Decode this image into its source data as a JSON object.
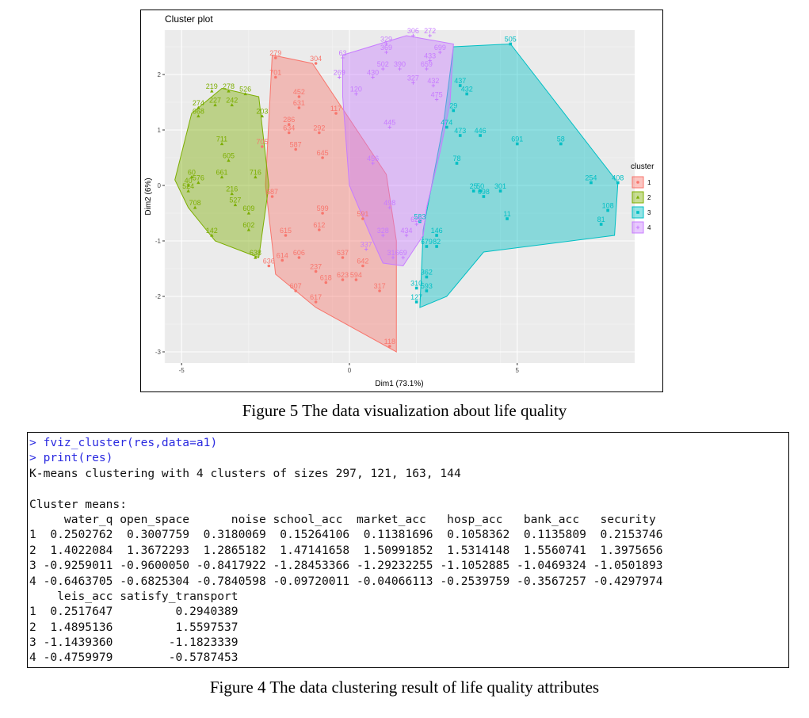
{
  "chart_data": {
    "type": "scatter",
    "title": "Cluster plot",
    "xlabel": "Dim1 (73.1%)",
    "ylabel": "Dim2 (6%)",
    "xlim": [
      -5.5,
      8.5
    ],
    "ylim": [
      -3.2,
      2.8
    ],
    "x_ticks": [
      -5,
      0,
      5
    ],
    "y_ticks": [
      -3,
      -2,
      -1,
      0,
      1,
      2
    ],
    "grid": true,
    "legend_title": "cluster",
    "legend_position": "right",
    "series": [
      {
        "name": "1",
        "color": "#F8766D",
        "marker": "circle",
        "hull": [
          [
            -2.3,
            2.35
          ],
          [
            -1.1,
            2.2
          ],
          [
            1.1,
            0.2
          ],
          [
            1.4,
            -1.0
          ],
          [
            1.4,
            -3.0
          ],
          [
            -1.0,
            -2.2
          ],
          [
            -2.2,
            -1.6
          ],
          [
            -2.5,
            0.0
          ]
        ],
        "points": [
          {
            "label": "279",
            "x": -2.2,
            "y": 2.3
          },
          {
            "label": "304",
            "x": -1.0,
            "y": 2.2
          },
          {
            "label": "701",
            "x": -2.2,
            "y": 1.95
          },
          {
            "label": "452",
            "x": -1.5,
            "y": 1.6
          },
          {
            "label": "631",
            "x": -1.5,
            "y": 1.4
          },
          {
            "label": "286",
            "x": -1.8,
            "y": 1.1
          },
          {
            "label": "634",
            "x": -1.8,
            "y": 0.95
          },
          {
            "label": "292",
            "x": -0.9,
            "y": 0.95
          },
          {
            "label": "117",
            "x": -0.4,
            "y": 1.3
          },
          {
            "label": "705",
            "x": -2.6,
            "y": 0.7
          },
          {
            "label": "587",
            "x": -1.6,
            "y": 0.65
          },
          {
            "label": "645",
            "x": -0.8,
            "y": 0.5
          },
          {
            "label": "687",
            "x": -2.3,
            "y": -0.2
          },
          {
            "label": "615",
            "x": -1.9,
            "y": -0.9
          },
          {
            "label": "614",
            "x": -2.0,
            "y": -1.35
          },
          {
            "label": "606",
            "x": -1.5,
            "y": -1.3
          },
          {
            "label": "636",
            "x": -2.4,
            "y": -1.45
          },
          {
            "label": "237",
            "x": -1.0,
            "y": -1.55
          },
          {
            "label": "618",
            "x": -0.7,
            "y": -1.75
          },
          {
            "label": "607",
            "x": -1.6,
            "y": -1.9
          },
          {
            "label": "637",
            "x": -0.2,
            "y": -1.3
          },
          {
            "label": "642",
            "x": 0.4,
            "y": -1.45
          },
          {
            "label": "617",
            "x": -1.0,
            "y": -2.1
          },
          {
            "label": "317",
            "x": 0.9,
            "y": -1.9
          },
          {
            "label": "118",
            "x": 1.2,
            "y": -2.9
          },
          {
            "label": "623",
            "x": -0.2,
            "y": -1.7
          },
          {
            "label": "594",
            "x": 0.2,
            "y": -1.7
          },
          {
            "label": "599",
            "x": -0.8,
            "y": -0.5
          },
          {
            "label": "612",
            "x": -0.9,
            "y": -0.8
          },
          {
            "label": "591",
            "x": 0.4,
            "y": -0.6
          }
        ]
      },
      {
        "name": "2",
        "color": "#7CAE00",
        "marker": "triangle",
        "hull": [
          [
            -3.8,
            1.75
          ],
          [
            -2.7,
            1.6
          ],
          [
            -2.4,
            0.0
          ],
          [
            -2.7,
            -1.3
          ],
          [
            -4.0,
            -1.0
          ],
          [
            -4.8,
            -0.4
          ],
          [
            -5.2,
            0.1
          ],
          [
            -4.7,
            1.3
          ]
        ],
        "points": [
          {
            "label": "219",
            "x": -4.1,
            "y": 1.7
          },
          {
            "label": "278",
            "x": -3.6,
            "y": 1.7
          },
          {
            "label": "526",
            "x": -3.1,
            "y": 1.65
          },
          {
            "label": "274",
            "x": -4.5,
            "y": 1.4
          },
          {
            "label": "227",
            "x": -4.0,
            "y": 1.45
          },
          {
            "label": "242",
            "x": -3.5,
            "y": 1.45
          },
          {
            "label": "668",
            "x": -4.5,
            "y": 1.25
          },
          {
            "label": "203",
            "x": -2.6,
            "y": 1.25
          },
          {
            "label": "711",
            "x": -3.8,
            "y": 0.75
          },
          {
            "label": "605",
            "x": -3.6,
            "y": 0.45
          },
          {
            "label": "661",
            "x": -3.8,
            "y": 0.15
          },
          {
            "label": "716",
            "x": -2.8,
            "y": 0.15
          },
          {
            "label": "576",
            "x": -4.5,
            "y": 0.05
          },
          {
            "label": "524",
            "x": -4.8,
            "y": -0.1
          },
          {
            "label": "216",
            "x": -3.5,
            "y": -0.15
          },
          {
            "label": "527",
            "x": -3.4,
            "y": -0.35
          },
          {
            "label": "708",
            "x": -4.6,
            "y": -0.4
          },
          {
            "label": "609",
            "x": -3.0,
            "y": -0.5
          },
          {
            "label": "602",
            "x": -3.0,
            "y": -0.8
          },
          {
            "label": "142",
            "x": -4.1,
            "y": -0.9
          },
          {
            "label": "638",
            "x": -2.8,
            "y": -1.3
          },
          {
            "label": "60",
            "x": -4.7,
            "y": 0.15
          },
          {
            "label": "40",
            "x": -4.8,
            "y": 0.0
          }
        ]
      },
      {
        "name": "3",
        "color": "#00BFC4",
        "marker": "square",
        "hull": [
          [
            3.1,
            2.5
          ],
          [
            4.8,
            2.55
          ],
          [
            8.0,
            0.05
          ],
          [
            7.9,
            -0.9
          ],
          [
            4.0,
            -1.2
          ],
          [
            2.9,
            -2.0
          ],
          [
            2.1,
            -2.2
          ],
          [
            2.2,
            -0.8
          ],
          [
            2.8,
            1.1
          ]
        ],
        "points": [
          {
            "label": "505",
            "x": 4.8,
            "y": 2.55
          },
          {
            "label": "437",
            "x": 3.3,
            "y": 1.8
          },
          {
            "label": "432",
            "x": 3.5,
            "y": 1.65
          },
          {
            "label": "29",
            "x": 3.1,
            "y": 1.35
          },
          {
            "label": "474",
            "x": 2.9,
            "y": 1.05
          },
          {
            "label": "473",
            "x": 3.3,
            "y": 0.9
          },
          {
            "label": "446",
            "x": 3.9,
            "y": 0.9
          },
          {
            "label": "691",
            "x": 5.0,
            "y": 0.75
          },
          {
            "label": "58",
            "x": 6.3,
            "y": 0.75
          },
          {
            "label": "254",
            "x": 7.2,
            "y": 0.05
          },
          {
            "label": "408",
            "x": 8.0,
            "y": 0.05
          },
          {
            "label": "50",
            "x": 3.9,
            "y": -0.1
          },
          {
            "label": "301",
            "x": 4.5,
            "y": -0.1
          },
          {
            "label": "698",
            "x": 4.0,
            "y": -0.2
          },
          {
            "label": "11",
            "x": 4.7,
            "y": -0.6
          },
          {
            "label": "81",
            "x": 7.5,
            "y": -0.7
          },
          {
            "label": "108",
            "x": 7.7,
            "y": -0.45
          },
          {
            "label": "146",
            "x": 2.6,
            "y": -0.9
          },
          {
            "label": "679",
            "x": 2.3,
            "y": -1.1
          },
          {
            "label": "82",
            "x": 2.6,
            "y": -1.1
          },
          {
            "label": "362",
            "x": 2.3,
            "y": -1.65
          },
          {
            "label": "310",
            "x": 2.0,
            "y": -1.85
          },
          {
            "label": "593",
            "x": 2.3,
            "y": -1.9
          },
          {
            "label": "127",
            "x": 2.0,
            "y": -2.1
          },
          {
            "label": "78",
            "x": 3.2,
            "y": 0.4
          },
          {
            "label": "25",
            "x": 3.7,
            "y": -0.1
          },
          {
            "label": "583",
            "x": 2.1,
            "y": -0.65
          }
        ]
      },
      {
        "name": "4",
        "color": "#C77CFF",
        "marker": "cross",
        "hull": [
          [
            -0.2,
            2.35
          ],
          [
            1.7,
            2.7
          ],
          [
            3.1,
            2.55
          ],
          [
            3.0,
            1.5
          ],
          [
            2.7,
            0.6
          ],
          [
            2.3,
            -0.4
          ],
          [
            2.2,
            -0.9
          ],
          [
            1.6,
            -1.45
          ],
          [
            1.0,
            -1.4
          ],
          [
            0.7,
            -1.0
          ],
          [
            0.0,
            0.0
          ],
          [
            -0.2,
            1.6
          ]
        ],
        "points": [
          {
            "label": "306",
            "x": 1.9,
            "y": 2.7
          },
          {
            "label": "272",
            "x": 2.4,
            "y": 2.7
          },
          {
            "label": "329",
            "x": 1.1,
            "y": 2.55
          },
          {
            "label": "369",
            "x": 1.1,
            "y": 2.4
          },
          {
            "label": "699",
            "x": 2.7,
            "y": 2.4
          },
          {
            "label": "63",
            "x": -0.2,
            "y": 2.3
          },
          {
            "label": "433",
            "x": 2.4,
            "y": 2.25
          },
          {
            "label": "502",
            "x": 1.0,
            "y": 2.1
          },
          {
            "label": "390",
            "x": 1.5,
            "y": 2.1
          },
          {
            "label": "659",
            "x": 2.3,
            "y": 2.1
          },
          {
            "label": "269",
            "x": -0.3,
            "y": 1.95
          },
          {
            "label": "430",
            "x": 0.7,
            "y": 1.95
          },
          {
            "label": "327",
            "x": 1.9,
            "y": 1.85
          },
          {
            "label": "432",
            "x": 2.5,
            "y": 1.8
          },
          {
            "label": "120",
            "x": 0.2,
            "y": 1.65
          },
          {
            "label": "475",
            "x": 2.6,
            "y": 1.55
          },
          {
            "label": "445",
            "x": 1.2,
            "y": 1.05
          },
          {
            "label": "456",
            "x": 0.7,
            "y": 0.4
          },
          {
            "label": "498",
            "x": 1.2,
            "y": -0.4
          },
          {
            "label": "626",
            "x": 2.0,
            "y": -0.7
          },
          {
            "label": "434",
            "x": 1.7,
            "y": -0.9
          },
          {
            "label": "328",
            "x": 1.0,
            "y": -0.9
          },
          {
            "label": "337",
            "x": 0.5,
            "y": -1.15
          },
          {
            "label": "316",
            "x": 1.3,
            "y": -1.3
          },
          {
            "label": "69",
            "x": 1.6,
            "y": -1.3
          }
        ]
      }
    ]
  },
  "captions": {
    "fig5": "Figure 5 The data visualization about life quality",
    "fig4": "Figure 4 The data clustering result of life quality attributes"
  },
  "console": {
    "lines": [
      {
        "kind": "cmd",
        "text": "> fviz_cluster(res,data=a1)"
      },
      {
        "kind": "cmd",
        "text": "> print(res)"
      },
      {
        "kind": "out",
        "text": "K-means clustering with 4 clusters of sizes 297, 121, 163, 144"
      },
      {
        "kind": "out",
        "text": ""
      },
      {
        "kind": "out",
        "text": "Cluster means:"
      },
      {
        "kind": "out",
        "text": "     water_q open_space      noise school_acc  market_acc   hosp_acc   bank_acc   security"
      },
      {
        "kind": "out",
        "text": "1  0.2502762  0.3007759  0.3180069  0.15264106  0.11381696  0.1058362  0.1135809  0.2153746"
      },
      {
        "kind": "out",
        "text": "2  1.4022084  1.3672293  1.2865182  1.47141658  1.50991852  1.5314148  1.5560741  1.3975656"
      },
      {
        "kind": "out",
        "text": "3 -0.9259011 -0.9600050 -0.8417922 -1.28453366 -1.29232255 -1.1052885 -1.0469324 -1.0501893"
      },
      {
        "kind": "out",
        "text": "4 -0.6463705 -0.6825304 -0.7840598 -0.09720011 -0.04066113 -0.2539759 -0.3567257 -0.4297974"
      },
      {
        "kind": "out",
        "text": "    leis_acc satisfy_transport"
      },
      {
        "kind": "out",
        "text": "1  0.2517647         0.2940389"
      },
      {
        "kind": "out",
        "text": "2  1.4895136         1.5597537"
      },
      {
        "kind": "out",
        "text": "3 -1.1439360        -1.1823339"
      },
      {
        "kind": "out",
        "text": "4 -0.4759979        -0.5787453"
      }
    ]
  }
}
